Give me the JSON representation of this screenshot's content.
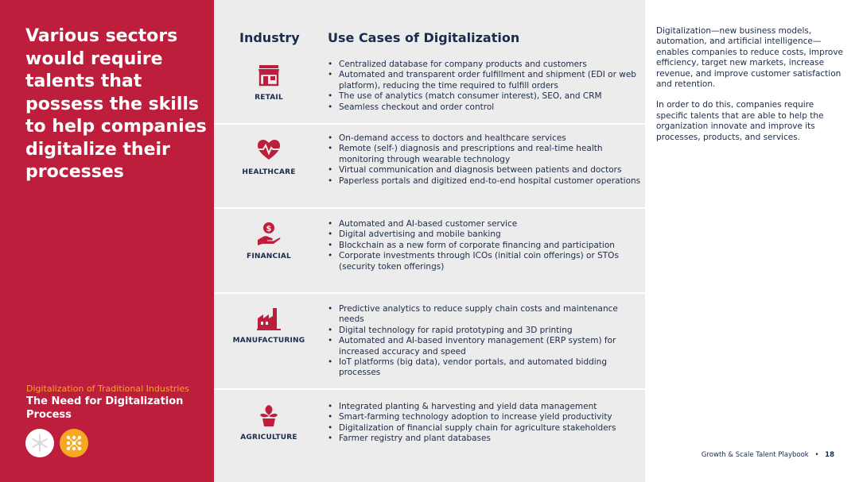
{
  "headline": "Various sectors would require talents that possess the skills to help companies digitalize their processes",
  "section": {
    "label": "Digitalization of Traditional Industries",
    "title": "The Need for Digitalization Process"
  },
  "table": {
    "header_industry": "Industry",
    "header_usecases": "Use Cases of Digitalization",
    "rows": [
      {
        "industry": "RETAIL",
        "icon": "store-icon",
        "items": [
          "Centralized database for company products and customers",
          "Automated and transparent order fulfillment and shipment (EDI or web platform), reducing the time required to fulfill orders",
          "The use of analytics (match consumer interest), SEO, and CRM",
          "Seamless checkout and order control"
        ]
      },
      {
        "industry": "HEALTHCARE",
        "icon": "heartbeat-icon",
        "items": [
          "On-demand access to doctors and healthcare services",
          "Remote (self-) diagnosis and prescriptions and real-time health monitoring through wearable technology",
          "Virtual communication and diagnosis between patients and doctors",
          "Paperless portals and digitized end-to-end hospital customer operations"
        ]
      },
      {
        "industry": "FINANCIAL",
        "icon": "hand-money-icon",
        "items": [
          "Automated and AI-based customer service",
          "Digital advertising and mobile banking",
          "Blockchain as a new form of corporate financing and participation",
          "Corporate investments through ICOs (initial coin offerings) or STOs (security token offerings)"
        ]
      },
      {
        "industry": "MANUFACTURING",
        "icon": "factory-icon",
        "items": [
          "Predictive analytics to reduce supply chain costs and maintenance needs",
          "Digital technology for rapid prototyping and 3D printing",
          "Automated and AI-based inventory management (ERP system) for increased accuracy and speed",
          "IoT platforms (big data), vendor portals, and automated bidding processes"
        ]
      },
      {
        "industry": "AGRICULTURE",
        "icon": "plant-icon",
        "items": [
          "Integrated planting & harvesting and yield data management",
          "Smart-farming technology adoption to increase yield productivity",
          "Digitalization of financial supply chain for agriculture stakeholders",
          "Farmer registry and plant databases"
        ]
      }
    ]
  },
  "side_text": {
    "paragraph1": "Digitalization—new business models, automation, and artificial intelligence—enables companies to reduce costs, improve efficiency, target new markets, increase revenue, and improve customer satisfaction and retention.",
    "paragraph2": "In order to do this, companies require specific talents that are able to help the organization innovate and improve its processes, products, and services."
  },
  "footer": {
    "doc_title": "Growth & Scale Talent Playbook",
    "separator": "•",
    "page_number": "18"
  },
  "colors": {
    "brand_red": "#bd1e3c",
    "accent_orange": "#f7a823",
    "navy": "#1b2b4b",
    "table_bg": "#ececec"
  }
}
